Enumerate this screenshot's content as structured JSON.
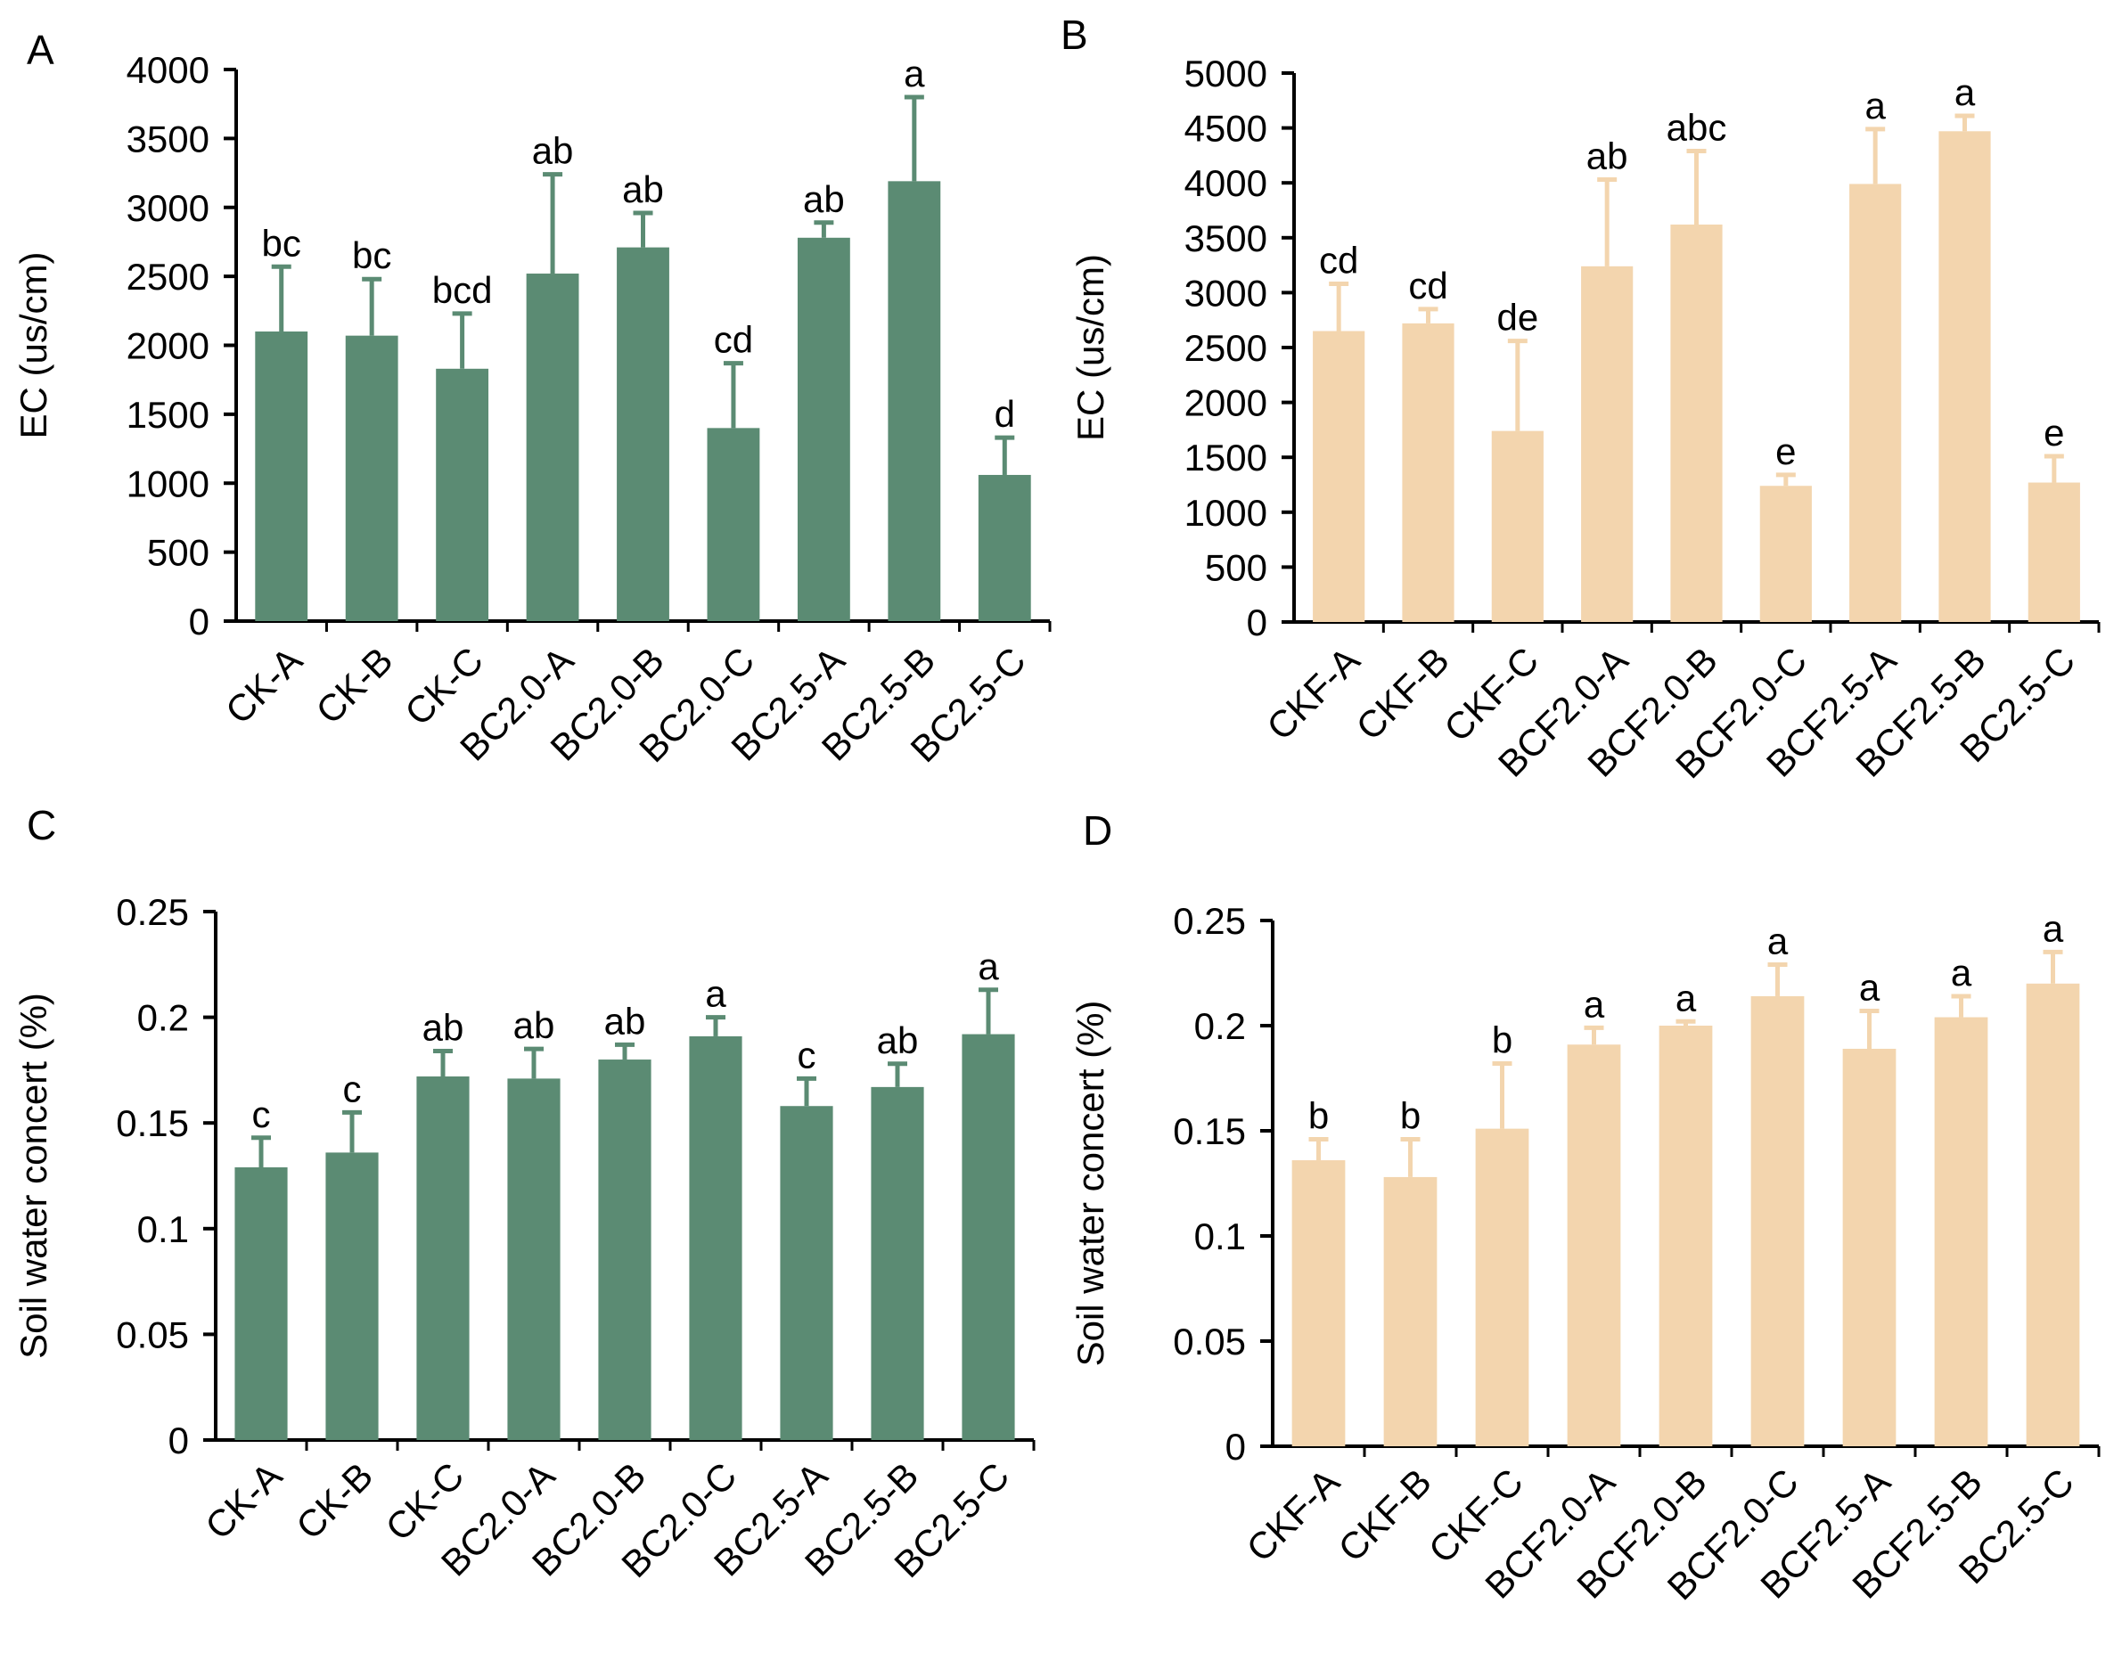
{
  "colors": {
    "green": "#5b8b73",
    "tan": "#f3d5ae",
    "axis": "#000000"
  },
  "chart_data": [
    {
      "panel": "A",
      "type": "bar",
      "color": "green",
      "ylabel": "EC (us/cm)",
      "ylim": [
        0,
        4000
      ],
      "yticks": [
        "0",
        "500",
        "1000",
        "1500",
        "2000",
        "2500",
        "3000",
        "3500",
        "4000"
      ],
      "categories": [
        "CK-A",
        "CK-B",
        "CK-C",
        "BC2.0-A",
        "BC2.0-B",
        "BC2.0-C",
        "BC2.5-A",
        "BC2.5-B",
        "BC2.5-C"
      ],
      "values": [
        2100,
        2070,
        1830,
        2520,
        2710,
        1400,
        2780,
        3190,
        1060
      ],
      "errors": [
        470,
        410,
        400,
        720,
        250,
        470,
        110,
        610,
        270
      ],
      "letters": [
        "bc",
        "bc",
        "bcd",
        "ab",
        "ab",
        "cd",
        "ab",
        "a",
        "d"
      ]
    },
    {
      "panel": "B",
      "type": "bar",
      "color": "tan",
      "ylabel": "EC (us/cm)",
      "ylim": [
        0,
        5000
      ],
      "yticks": [
        "0",
        "500",
        "1000",
        "1500",
        "2000",
        "2500",
        "3000",
        "3500",
        "4000",
        "4500",
        "5000"
      ],
      "categories": [
        "CKF-A",
        "CKF-B",
        "CKF-C",
        "BCF2.0-A",
        "BCF2.0-B",
        "BCF2.0-C",
        "BCF2.5-A",
        "BCF2.5-B",
        "BC2.5-C"
      ],
      "values": [
        2650,
        2720,
        1740,
        3240,
        3620,
        1240,
        3990,
        4470,
        1270
      ],
      "errors": [
        430,
        130,
        820,
        790,
        670,
        100,
        500,
        140,
        240
      ],
      "letters": [
        "cd",
        "cd",
        "de",
        "ab",
        "abc",
        "e",
        "a",
        "a",
        "e"
      ]
    },
    {
      "panel": "C",
      "type": "bar",
      "color": "green",
      "ylabel": "Soil water concert (%)",
      "ylim": [
        0,
        0.25
      ],
      "yticks": [
        "0",
        "0.05",
        "0.1",
        "0.15",
        "0.2",
        "0.25"
      ],
      "categories": [
        "CK-A",
        "CK-B",
        "CK-C",
        "BC2.0-A",
        "BC2.0-B",
        "BC2.0-C",
        "BC2.5-A",
        "BC2.5-B",
        "BC2.5-C"
      ],
      "values": [
        0.129,
        0.136,
        0.172,
        0.171,
        0.18,
        0.191,
        0.158,
        0.167,
        0.192
      ],
      "errors": [
        0.014,
        0.019,
        0.012,
        0.014,
        0.007,
        0.009,
        0.013,
        0.011,
        0.021
      ],
      "letters": [
        "c",
        "c",
        "ab",
        "ab",
        "ab",
        "a",
        "c",
        "ab",
        "a"
      ]
    },
    {
      "panel": "D",
      "type": "bar",
      "color": "tan",
      "ylabel": "Soil water concert (%)",
      "ylim": [
        0,
        0.25
      ],
      "yticks": [
        "0",
        "0.05",
        "0.1",
        "0.15",
        "0.2",
        "0.25"
      ],
      "categories": [
        "CKF-A",
        "CKF-B",
        "CKF-C",
        "BCF2.0-A",
        "BCF2.0-B",
        "BCF2.0-C",
        "BCF2.5-A",
        "BCF2.5-B",
        "BC2.5-C"
      ],
      "values": [
        0.136,
        0.128,
        0.151,
        0.191,
        0.2,
        0.214,
        0.189,
        0.204,
        0.22
      ],
      "errors": [
        0.01,
        0.018,
        0.031,
        0.008,
        0.002,
        0.015,
        0.018,
        0.01,
        0.015
      ],
      "letters": [
        "b",
        "b",
        "b",
        "a",
        "a",
        "a",
        "a",
        "a",
        "a"
      ]
    }
  ]
}
